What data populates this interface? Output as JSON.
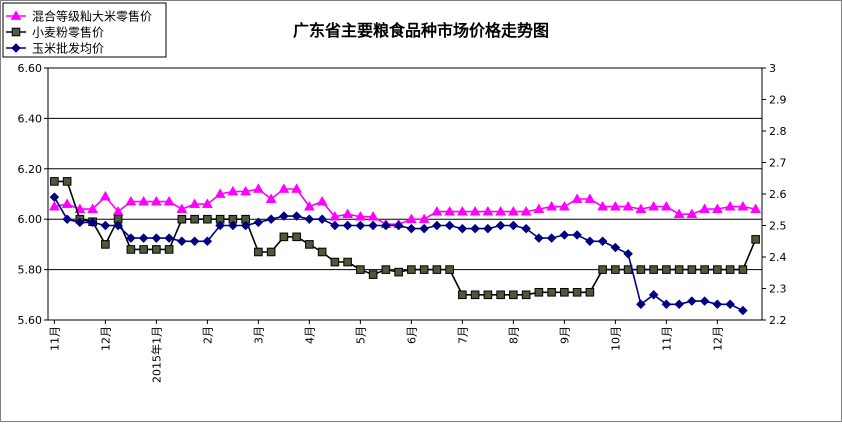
{
  "chart_data": {
    "type": "line",
    "title": "广东省主要粮食品种市场价格走势图",
    "xlabel": "",
    "ylabel": "",
    "ylim_left": [
      5.6,
      6.6
    ],
    "yticks_left": [
      "5.60",
      "5.80",
      "6.00",
      "6.20",
      "6.40",
      "6.60"
    ],
    "ylim_right": [
      2.2,
      3.0
    ],
    "yticks_right": [
      "2.2",
      "2.3",
      "2.4",
      "2.5",
      "2.6",
      "2.7",
      "2.8",
      "2.9",
      "3"
    ],
    "grid": "horizontal",
    "legend_position": "top-left",
    "month_labels": [
      {
        "index": 0,
        "label": "11月"
      },
      {
        "index": 4,
        "label": "12月"
      },
      {
        "index": 8,
        "label": "2015年1月"
      },
      {
        "index": 12,
        "label": "2月"
      },
      {
        "index": 16,
        "label": "3月"
      },
      {
        "index": 20,
        "label": "4月"
      },
      {
        "index": 24,
        "label": "5月"
      },
      {
        "index": 28,
        "label": "6月"
      },
      {
        "index": 32,
        "label": "7月"
      },
      {
        "index": 36,
        "label": "8月"
      },
      {
        "index": 40,
        "label": "9月"
      },
      {
        "index": 44,
        "label": "10月"
      },
      {
        "index": 48,
        "label": "11月"
      },
      {
        "index": 52,
        "label": "12月"
      }
    ],
    "series": [
      {
        "name": "混合等级籼大米零售价",
        "axis": "left",
        "marker": "triangle",
        "color": "#ff00ff",
        "values": [
          6.05,
          6.06,
          6.04,
          6.04,
          6.09,
          6.03,
          6.07,
          6.07,
          6.07,
          6.07,
          6.04,
          6.06,
          6.06,
          6.1,
          6.11,
          6.11,
          6.12,
          6.08,
          6.12,
          6.12,
          6.05,
          6.07,
          6.01,
          6.02,
          6.01,
          6.01,
          5.98,
          5.98,
          6.0,
          6.0,
          6.03,
          6.03,
          6.03,
          6.03,
          6.03,
          6.03,
          6.03,
          6.03,
          6.04,
          6.05,
          6.05,
          6.08,
          6.08,
          6.05,
          6.05,
          6.05,
          6.04,
          6.05,
          6.05,
          6.02,
          6.02,
          6.04,
          6.04,
          6.05,
          6.05,
          6.04
        ]
      },
      {
        "name": "小麦粉零售价",
        "axis": "left",
        "marker": "square",
        "color": "#000000",
        "marker_fill": "#4d5a3a",
        "values": [
          6.15,
          6.15,
          6.0,
          5.99,
          5.9,
          6.0,
          5.88,
          5.88,
          5.88,
          5.88,
          6.0,
          6.0,
          6.0,
          6.0,
          6.0,
          6.0,
          5.87,
          5.87,
          5.93,
          5.93,
          5.9,
          5.87,
          5.83,
          5.83,
          5.8,
          5.78,
          5.8,
          5.79,
          5.8,
          5.8,
          5.8,
          5.8,
          5.7,
          5.7,
          5.7,
          5.7,
          5.7,
          5.7,
          5.71,
          5.71,
          5.71,
          5.71,
          5.71,
          5.8,
          5.8,
          5.8,
          5.8,
          5.8,
          5.8,
          5.8,
          5.8,
          5.8,
          5.8,
          5.8,
          5.8,
          5.92
        ]
      },
      {
        "name": "玉米批发均价",
        "axis": "right",
        "marker": "diamond",
        "color": "#000080",
        "values": [
          2.59,
          2.52,
          2.51,
          2.51,
          2.5,
          2.5,
          2.46,
          2.46,
          2.46,
          2.46,
          2.45,
          2.45,
          2.45,
          2.5,
          2.5,
          2.5,
          2.51,
          2.52,
          2.53,
          2.53,
          2.52,
          2.52,
          2.5,
          2.5,
          2.5,
          2.5,
          2.5,
          2.5,
          2.49,
          2.49,
          2.5,
          2.5,
          2.49,
          2.49,
          2.49,
          2.5,
          2.5,
          2.49,
          2.46,
          2.46,
          2.47,
          2.47,
          2.45,
          2.45,
          2.43,
          2.41,
          2.25,
          2.28,
          2.25,
          2.25,
          2.26,
          2.26,
          2.25,
          2.25,
          2.23
        ]
      }
    ]
  }
}
